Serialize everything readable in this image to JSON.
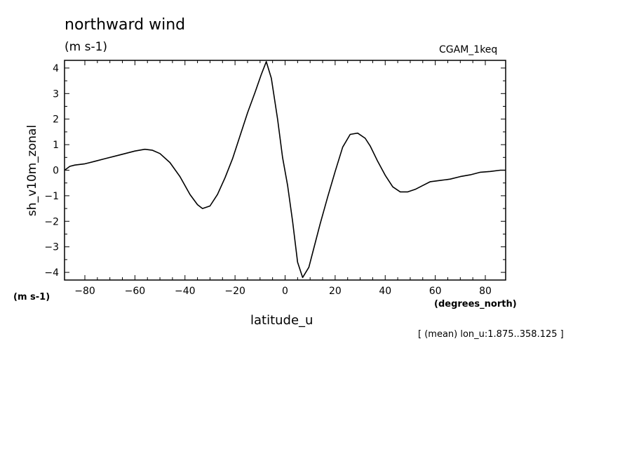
{
  "chart_data": {
    "type": "line",
    "title": "northward wind",
    "subtitle": "(m s-1)",
    "run_label": "CGAM_1keq",
    "ylabel": "sh_v10m_zonal",
    "yunits": "(m s-1)",
    "xlabel": "latitude_u",
    "xunits": "(degrees_north)",
    "note": "[ (mean) lon_u:1.875..358.125 ]",
    "xlim": [
      -88.125,
      88.125
    ],
    "ylim": [
      -4.3,
      4.3
    ],
    "xticks": [
      -80,
      -60,
      -40,
      -20,
      0,
      20,
      40,
      60,
      80
    ],
    "yticks": [
      -4,
      -3,
      -2,
      -1,
      0,
      1,
      2,
      3,
      4
    ],
    "grid": false,
    "series": [
      {
        "x": [
          -88.1,
          -86,
          -84,
          -80,
          -76,
          -72,
          -66,
          -60,
          -56,
          -53,
          -50,
          -46,
          -42,
          -38,
          -35,
          -33,
          -30,
          -27,
          -24,
          -21,
          -18,
          -15,
          -12,
          -9.5,
          -7.5,
          -5.5,
          -3,
          -1,
          1,
          3,
          5,
          7,
          9.5,
          11.5,
          14,
          17,
          20,
          23,
          26,
          29,
          32,
          34,
          37,
          40,
          43,
          46,
          49,
          52,
          55,
          58,
          62,
          66,
          70,
          74,
          78,
          82,
          86,
          88.1
        ],
        "y": [
          0.0,
          0.15,
          0.2,
          0.25,
          0.35,
          0.45,
          0.6,
          0.75,
          0.82,
          0.78,
          0.65,
          0.3,
          -0.25,
          -0.95,
          -1.35,
          -1.5,
          -1.4,
          -0.95,
          -0.3,
          0.45,
          1.35,
          2.25,
          3.05,
          3.75,
          4.25,
          3.6,
          2.0,
          0.5,
          -0.6,
          -2.0,
          -3.6,
          -4.2,
          -3.8,
          -3.05,
          -2.1,
          -1.05,
          -0.05,
          0.9,
          1.4,
          1.45,
          1.25,
          0.95,
          0.35,
          -0.2,
          -0.65,
          -0.85,
          -0.85,
          -0.75,
          -0.6,
          -0.45,
          -0.4,
          -0.35,
          -0.25,
          -0.18,
          -0.08,
          -0.05,
          0.0,
          0.0
        ]
      }
    ]
  }
}
